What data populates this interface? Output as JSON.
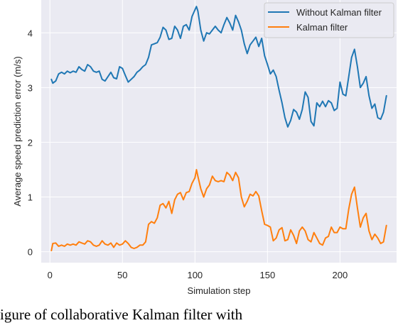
{
  "chart_data": {
    "type": "line",
    "title": "",
    "xlabel": "Simulation step",
    "ylabel": "Average speed prediction error (m/s)",
    "xlim": [
      -6,
      239
    ],
    "ylim": [
      -0.2,
      4.6
    ],
    "x_ticks": [
      0,
      50,
      100,
      150,
      200
    ],
    "y_ticks": [
      0,
      1,
      2,
      3,
      4
    ],
    "grid": true,
    "legend_position": "top-right",
    "background": "#eaeaf2",
    "series": [
      {
        "name": "Without Kalman filter",
        "color": "#1f77b4",
        "points": [
          [
            1,
            3.15
          ],
          [
            2,
            3.08
          ],
          [
            4,
            3.12
          ],
          [
            6,
            3.25
          ],
          [
            8,
            3.28
          ],
          [
            10,
            3.25
          ],
          [
            12,
            3.3
          ],
          [
            14,
            3.27
          ],
          [
            16,
            3.3
          ],
          [
            18,
            3.28
          ],
          [
            20,
            3.38
          ],
          [
            22,
            3.33
          ],
          [
            24,
            3.3
          ],
          [
            26,
            3.42
          ],
          [
            28,
            3.38
          ],
          [
            30,
            3.3
          ],
          [
            32,
            3.28
          ],
          [
            34,
            3.3
          ],
          [
            36,
            3.15
          ],
          [
            38,
            3.12
          ],
          [
            40,
            3.2
          ],
          [
            42,
            3.28
          ],
          [
            44,
            3.18
          ],
          [
            46,
            3.16
          ],
          [
            48,
            3.38
          ],
          [
            50,
            3.35
          ],
          [
            52,
            3.22
          ],
          [
            54,
            3.1
          ],
          [
            56,
            3.15
          ],
          [
            58,
            3.2
          ],
          [
            60,
            3.28
          ],
          [
            62,
            3.32
          ],
          [
            64,
            3.38
          ],
          [
            66,
            3.42
          ],
          [
            68,
            3.55
          ],
          [
            70,
            3.78
          ],
          [
            72,
            3.8
          ],
          [
            74,
            3.82
          ],
          [
            76,
            3.92
          ],
          [
            78,
            4.1
          ],
          [
            80,
            4.05
          ],
          [
            82,
            3.88
          ],
          [
            84,
            3.9
          ],
          [
            86,
            4.12
          ],
          [
            88,
            4.05
          ],
          [
            90,
            3.9
          ],
          [
            92,
            4.12
          ],
          [
            94,
            4.15
          ],
          [
            96,
            4.05
          ],
          [
            98,
            4.3
          ],
          [
            100,
            4.42
          ],
          [
            101,
            4.48
          ],
          [
            102,
            4.4
          ],
          [
            104,
            4.05
          ],
          [
            106,
            3.85
          ],
          [
            108,
            4.0
          ],
          [
            110,
            3.98
          ],
          [
            112,
            4.05
          ],
          [
            114,
            4.12
          ],
          [
            116,
            4.05
          ],
          [
            118,
            4.0
          ],
          [
            120,
            4.15
          ],
          [
            122,
            4.28
          ],
          [
            124,
            4.18
          ],
          [
            126,
            4.05
          ],
          [
            128,
            4.32
          ],
          [
            130,
            4.2
          ],
          [
            132,
            4.05
          ],
          [
            134,
            3.8
          ],
          [
            136,
            3.62
          ],
          [
            138,
            3.78
          ],
          [
            140,
            3.85
          ],
          [
            142,
            3.92
          ],
          [
            144,
            3.75
          ],
          [
            146,
            3.9
          ],
          [
            148,
            3.58
          ],
          [
            150,
            3.42
          ],
          [
            152,
            3.25
          ],
          [
            154,
            3.32
          ],
          [
            156,
            3.2
          ],
          [
            158,
            2.95
          ],
          [
            160,
            2.72
          ],
          [
            162,
            2.45
          ],
          [
            164,
            2.28
          ],
          [
            166,
            2.4
          ],
          [
            168,
            2.6
          ],
          [
            170,
            2.55
          ],
          [
            172,
            2.42
          ],
          [
            174,
            2.6
          ],
          [
            176,
            2.92
          ],
          [
            178,
            2.82
          ],
          [
            180,
            2.38
          ],
          [
            182,
            2.3
          ],
          [
            184,
            2.72
          ],
          [
            186,
            2.65
          ],
          [
            188,
            2.75
          ],
          [
            190,
            2.65
          ],
          [
            192,
            2.76
          ],
          [
            194,
            2.72
          ],
          [
            196,
            2.58
          ],
          [
            198,
            2.62
          ],
          [
            200,
            3.1
          ],
          [
            202,
            2.88
          ],
          [
            204,
            2.85
          ],
          [
            206,
            3.2
          ],
          [
            208,
            3.55
          ],
          [
            210,
            3.7
          ],
          [
            212,
            3.38
          ],
          [
            214,
            3.0
          ],
          [
            216,
            3.08
          ],
          [
            218,
            3.2
          ],
          [
            220,
            2.85
          ],
          [
            222,
            2.62
          ],
          [
            224,
            2.7
          ],
          [
            226,
            2.45
          ],
          [
            228,
            2.42
          ],
          [
            230,
            2.55
          ],
          [
            232,
            2.85
          ]
        ]
      },
      {
        "name": "Kalman filter",
        "color": "#ff7f0e",
        "points": [
          [
            1,
            0.02
          ],
          [
            2,
            0.15
          ],
          [
            4,
            0.16
          ],
          [
            6,
            0.1
          ],
          [
            8,
            0.12
          ],
          [
            10,
            0.1
          ],
          [
            12,
            0.14
          ],
          [
            14,
            0.12
          ],
          [
            16,
            0.14
          ],
          [
            18,
            0.12
          ],
          [
            20,
            0.18
          ],
          [
            22,
            0.16
          ],
          [
            24,
            0.14
          ],
          [
            26,
            0.2
          ],
          [
            28,
            0.18
          ],
          [
            30,
            0.12
          ],
          [
            32,
            0.1
          ],
          [
            34,
            0.12
          ],
          [
            36,
            0.2
          ],
          [
            38,
            0.14
          ],
          [
            40,
            0.12
          ],
          [
            42,
            0.16
          ],
          [
            44,
            0.08
          ],
          [
            46,
            0.16
          ],
          [
            48,
            0.12
          ],
          [
            50,
            0.14
          ],
          [
            52,
            0.2
          ],
          [
            54,
            0.15
          ],
          [
            56,
            0.08
          ],
          [
            58,
            0.06
          ],
          [
            60,
            0.08
          ],
          [
            62,
            0.12
          ],
          [
            64,
            0.12
          ],
          [
            66,
            0.18
          ],
          [
            68,
            0.5
          ],
          [
            70,
            0.55
          ],
          [
            72,
            0.52
          ],
          [
            74,
            0.62
          ],
          [
            76,
            0.85
          ],
          [
            78,
            0.88
          ],
          [
            80,
            0.8
          ],
          [
            82,
            0.92
          ],
          [
            84,
            0.7
          ],
          [
            86,
            0.95
          ],
          [
            88,
            1.05
          ],
          [
            90,
            1.08
          ],
          [
            92,
            0.95
          ],
          [
            94,
            1.08
          ],
          [
            96,
            1.1
          ],
          [
            98,
            1.25
          ],
          [
            100,
            1.35
          ],
          [
            101,
            1.5
          ],
          [
            102,
            1.38
          ],
          [
            104,
            1.15
          ],
          [
            106,
            1.0
          ],
          [
            108,
            1.15
          ],
          [
            110,
            1.22
          ],
          [
            112,
            1.38
          ],
          [
            114,
            1.3
          ],
          [
            116,
            1.28
          ],
          [
            118,
            1.3
          ],
          [
            120,
            1.28
          ],
          [
            122,
            1.45
          ],
          [
            124,
            1.4
          ],
          [
            126,
            1.3
          ],
          [
            128,
            1.45
          ],
          [
            130,
            1.35
          ],
          [
            132,
            1.0
          ],
          [
            134,
            0.82
          ],
          [
            136,
            0.92
          ],
          [
            138,
            1.05
          ],
          [
            140,
            1.02
          ],
          [
            142,
            1.1
          ],
          [
            144,
            1.02
          ],
          [
            146,
            0.75
          ],
          [
            148,
            0.5
          ],
          [
            150,
            0.48
          ],
          [
            152,
            0.45
          ],
          [
            154,
            0.2
          ],
          [
            156,
            0.25
          ],
          [
            158,
            0.4
          ],
          [
            160,
            0.44
          ],
          [
            162,
            0.2
          ],
          [
            164,
            0.22
          ],
          [
            166,
            0.4
          ],
          [
            168,
            0.3
          ],
          [
            170,
            0.15
          ],
          [
            172,
            0.38
          ],
          [
            174,
            0.45
          ],
          [
            176,
            0.38
          ],
          [
            178,
            0.22
          ],
          [
            180,
            0.18
          ],
          [
            182,
            0.35
          ],
          [
            184,
            0.25
          ],
          [
            186,
            0.15
          ],
          [
            188,
            0.12
          ],
          [
            190,
            0.25
          ],
          [
            192,
            0.28
          ],
          [
            194,
            0.45
          ],
          [
            196,
            0.35
          ],
          [
            198,
            0.35
          ],
          [
            200,
            0.45
          ],
          [
            202,
            0.42
          ],
          [
            204,
            0.42
          ],
          [
            206,
            0.78
          ],
          [
            208,
            1.05
          ],
          [
            210,
            1.18
          ],
          [
            212,
            0.8
          ],
          [
            214,
            0.45
          ],
          [
            216,
            0.62
          ],
          [
            218,
            0.7
          ],
          [
            220,
            0.38
          ],
          [
            222,
            0.22
          ],
          [
            224,
            0.32
          ],
          [
            226,
            0.25
          ],
          [
            228,
            0.15
          ],
          [
            230,
            0.18
          ],
          [
            232,
            0.48
          ]
        ]
      }
    ]
  },
  "caption_text": "igure of collaborative Kalman filter with"
}
